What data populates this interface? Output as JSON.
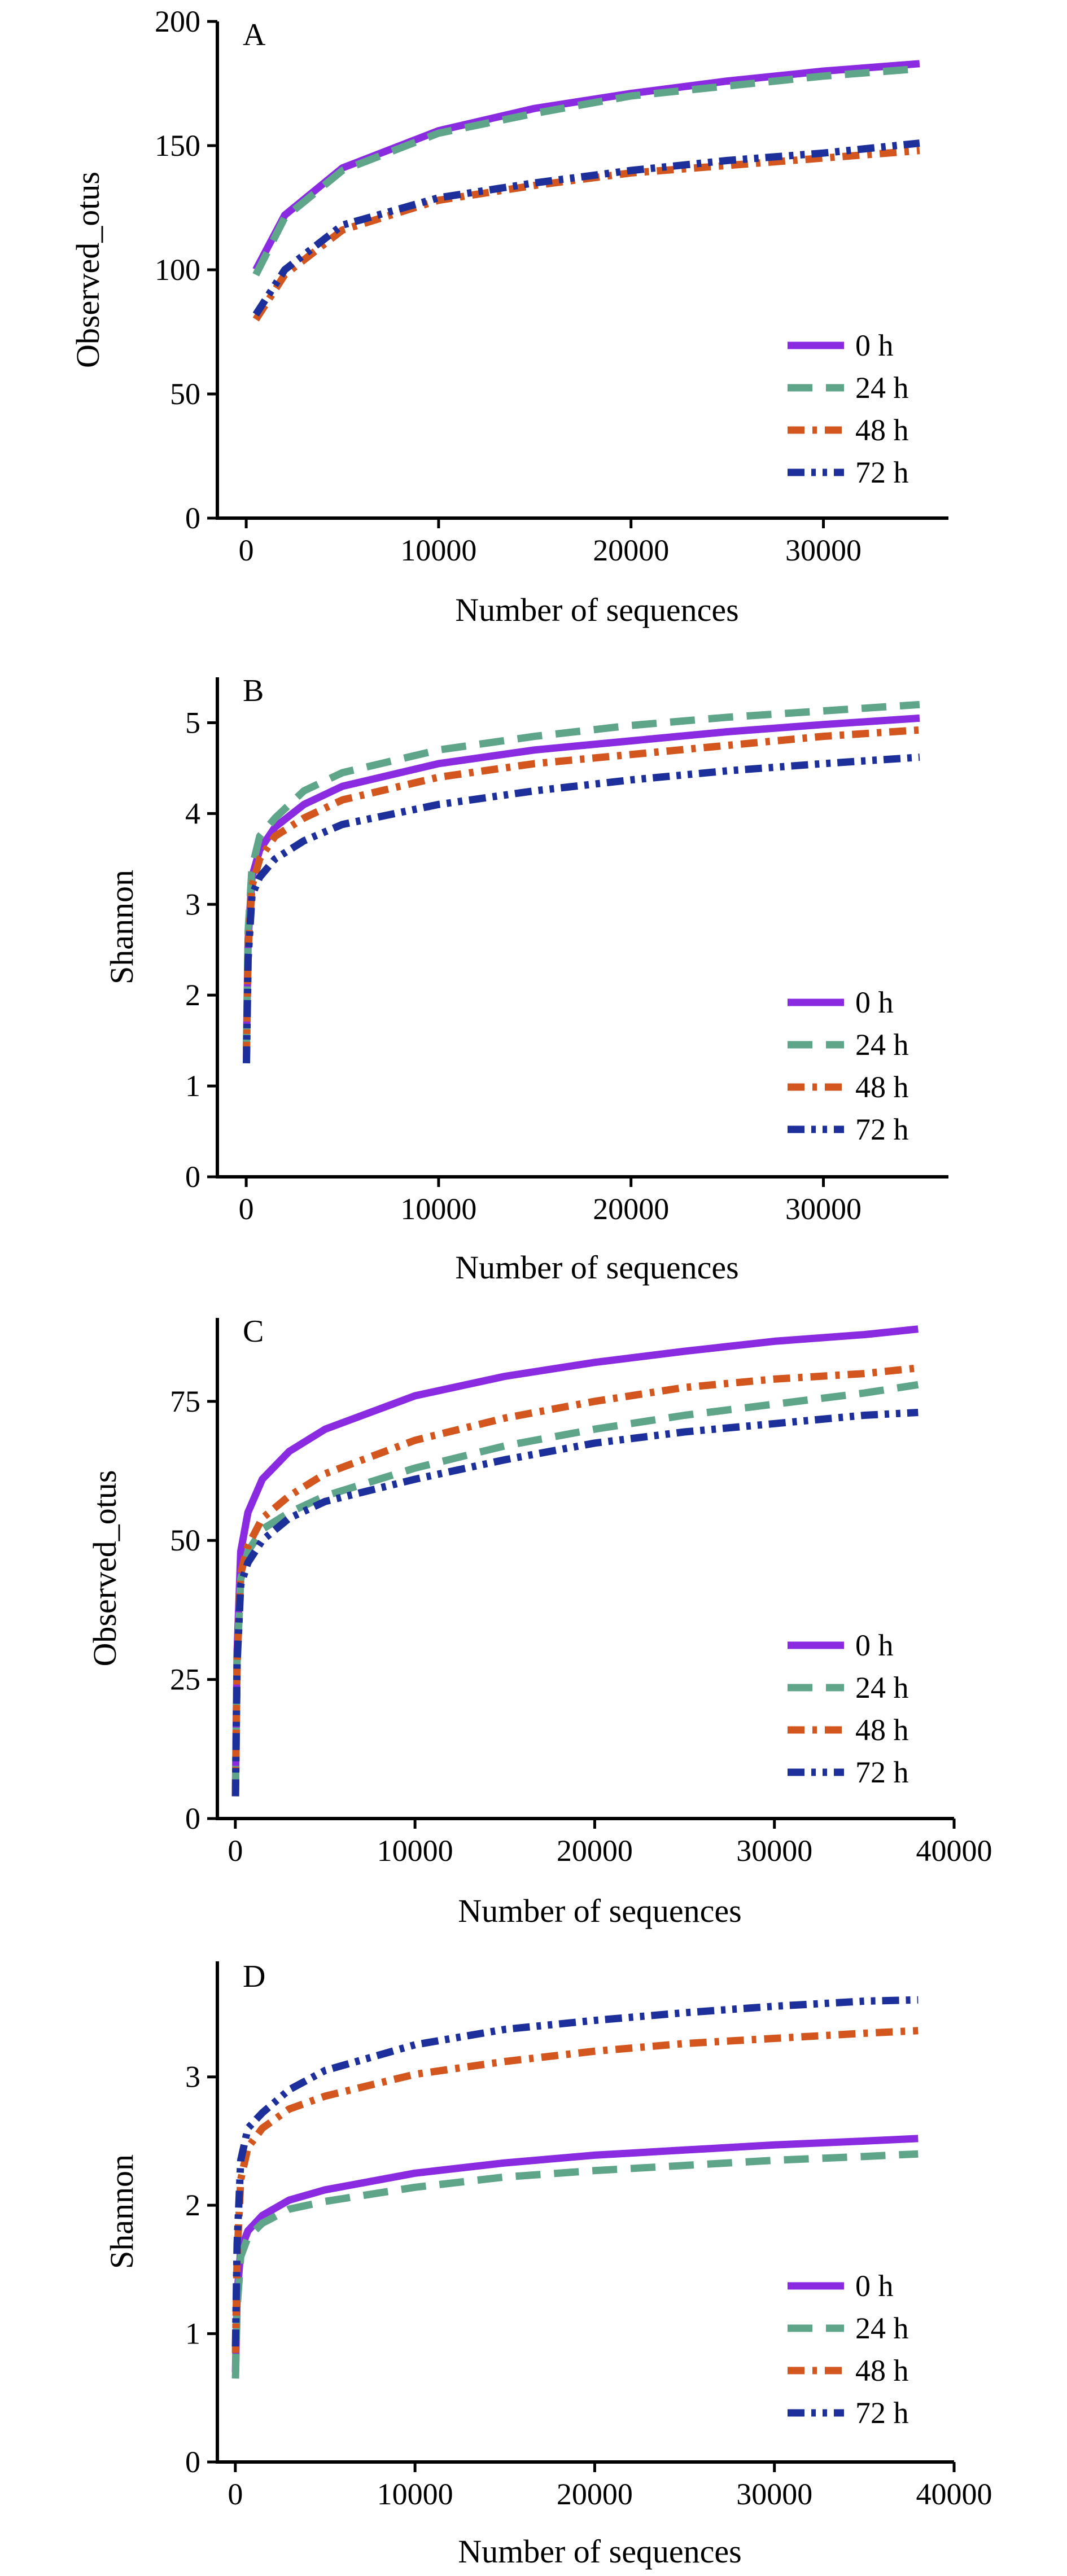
{
  "figure_title": "",
  "chart_data": [
    {
      "panel": "A",
      "type": "line",
      "xlabel": "Number of sequences",
      "ylabel": "Observed_otus",
      "xlim": [
        -1500,
        36500
      ],
      "ylim": [
        0,
        200
      ],
      "xticks": [
        0,
        10000,
        20000,
        30000
      ],
      "yticks": [
        0,
        50,
        100,
        150,
        200
      ],
      "grid": false,
      "legend_position": "lower-right",
      "x": [
        500,
        2000,
        5000,
        10000,
        15000,
        20000,
        25000,
        30000,
        35000
      ],
      "series": [
        {
          "name": "0 h",
          "color": "#8a2be2",
          "dash": "solid",
          "values": [
            100,
            122,
            141,
            156,
            165,
            171,
            176,
            180,
            183
          ]
        },
        {
          "name": "24 h",
          "color": "#5fa58a",
          "dash": "dash",
          "values": [
            98,
            121,
            140,
            155,
            163,
            170,
            174,
            178,
            181
          ]
        },
        {
          "name": "48 h",
          "color": "#d2561d",
          "dash": "dashdot",
          "values": [
            80,
            98,
            116,
            128,
            134,
            139,
            142,
            145,
            148
          ]
        },
        {
          "name": "72 h",
          "color": "#1d2f9b",
          "dash": "dashdotdot",
          "values": [
            82,
            100,
            118,
            129,
            135,
            140,
            144,
            147,
            151
          ]
        }
      ]
    },
    {
      "panel": "B",
      "type": "line",
      "xlabel": "Number of sequences",
      "ylabel": "Shannon",
      "xlim": [
        -1500,
        36500
      ],
      "ylim": [
        0,
        5.5
      ],
      "xticks": [
        0,
        10000,
        20000,
        30000
      ],
      "yticks": [
        0,
        1,
        2,
        3,
        4,
        5
      ],
      "grid": false,
      "legend_position": "lower-right",
      "x": [
        10,
        100,
        300,
        700,
        1500,
        3000,
        5000,
        10000,
        15000,
        20000,
        25000,
        30000,
        35000
      ],
      "series": [
        {
          "name": "0 h",
          "color": "#8a2be2",
          "dash": "solid",
          "values": [
            1.4,
            2.6,
            3.3,
            3.6,
            3.85,
            4.1,
            4.3,
            4.55,
            4.7,
            4.8,
            4.9,
            4.98,
            5.05
          ]
        },
        {
          "name": "24 h",
          "color": "#5fa58a",
          "dash": "dash",
          "values": [
            1.4,
            2.7,
            3.4,
            3.75,
            3.95,
            4.25,
            4.45,
            4.7,
            4.85,
            4.97,
            5.06,
            5.13,
            5.2
          ]
        },
        {
          "name": "48 h",
          "color": "#d2561d",
          "dash": "dashdot",
          "values": [
            1.3,
            2.5,
            3.2,
            3.5,
            3.75,
            3.95,
            4.15,
            4.4,
            4.55,
            4.65,
            4.75,
            4.85,
            4.92
          ]
        },
        {
          "name": "72 h",
          "color": "#1d2f9b",
          "dash": "dashdotdot",
          "values": [
            1.25,
            2.4,
            3.1,
            3.3,
            3.5,
            3.7,
            3.88,
            4.1,
            4.25,
            4.37,
            4.47,
            4.55,
            4.62
          ]
        }
      ]
    },
    {
      "panel": "C",
      "type": "line",
      "xlabel": "Number of sequences",
      "ylabel": "Observed_otus",
      "xlim": [
        -1000,
        40000
      ],
      "ylim": [
        0,
        90
      ],
      "xticks": [
        0,
        10000,
        20000,
        30000,
        40000
      ],
      "yticks": [
        0,
        25,
        50,
        75
      ],
      "grid": false,
      "legend_position": "lower-right",
      "x": [
        10,
        100,
        300,
        700,
        1500,
        3000,
        5000,
        10000,
        15000,
        20000,
        25000,
        30000,
        35000,
        38000
      ],
      "series": [
        {
          "name": "0 h",
          "color": "#8a2be2",
          "dash": "solid",
          "values": [
            5,
            30,
            48,
            55,
            61,
            66,
            70,
            76,
            79.5,
            82,
            84,
            85.8,
            87,
            88
          ]
        },
        {
          "name": "24 h",
          "color": "#5fa58a",
          "dash": "dash",
          "values": [
            5,
            28,
            43,
            48,
            52,
            55,
            58,
            63,
            67,
            70,
            72.5,
            74.5,
            76.5,
            78
          ]
        },
        {
          "name": "48 h",
          "color": "#d2561d",
          "dash": "dashdot",
          "values": [
            4,
            28,
            44,
            49,
            54,
            58,
            62,
            68,
            72,
            75,
            77.5,
            79,
            80,
            81
          ]
        },
        {
          "name": "72 h",
          "color": "#1d2f9b",
          "dash": "dashdotdot",
          "values": [
            4,
            28,
            42,
            46,
            50,
            54,
            57,
            61,
            64.5,
            67.5,
            69.5,
            71,
            72.5,
            73
          ]
        }
      ]
    },
    {
      "panel": "D",
      "type": "line",
      "xlabel": "Number of sequences",
      "ylabel": "Shannon",
      "xlim": [
        -1000,
        40000
      ],
      "ylim": [
        0,
        3.9
      ],
      "xticks": [
        0,
        10000,
        20000,
        30000,
        40000
      ],
      "yticks": [
        0,
        1,
        2,
        3
      ],
      "grid": false,
      "legend_position": "lower-right",
      "x": [
        10,
        100,
        300,
        700,
        1500,
        3000,
        5000,
        10000,
        15000,
        20000,
        25000,
        30000,
        35000,
        38000
      ],
      "series": [
        {
          "name": "0 h",
          "color": "#8a2be2",
          "dash": "solid",
          "values": [
            0.7,
            1.3,
            1.65,
            1.8,
            1.92,
            2.04,
            2.12,
            2.25,
            2.33,
            2.39,
            2.43,
            2.47,
            2.5,
            2.52
          ]
        },
        {
          "name": "24 h",
          "color": "#5fa58a",
          "dash": "dash",
          "values": [
            0.65,
            1.2,
            1.6,
            1.75,
            1.86,
            1.97,
            2.03,
            2.14,
            2.22,
            2.27,
            2.31,
            2.35,
            2.38,
            2.4
          ]
        },
        {
          "name": "48 h",
          "color": "#d2561d",
          "dash": "dashdot",
          "values": [
            0.85,
            1.6,
            2.2,
            2.45,
            2.6,
            2.75,
            2.85,
            3.02,
            3.12,
            3.2,
            3.26,
            3.3,
            3.34,
            3.36
          ]
        },
        {
          "name": "72 h",
          "color": "#1d2f9b",
          "dash": "dashdotdot",
          "values": [
            0.9,
            1.7,
            2.35,
            2.6,
            2.72,
            2.9,
            3.05,
            3.25,
            3.37,
            3.44,
            3.5,
            3.55,
            3.59,
            3.6
          ]
        }
      ]
    }
  ]
}
